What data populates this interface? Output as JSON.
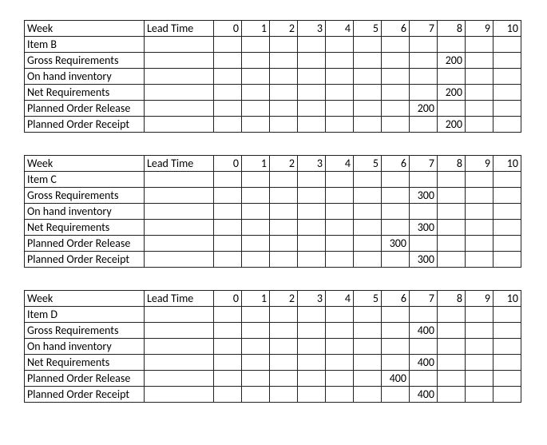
{
  "header": {
    "week_label": "Week",
    "lead_time_label": "Lead Time",
    "periods": [
      "0",
      "1",
      "2",
      "3",
      "4",
      "5",
      "6",
      "7",
      "8",
      "9",
      "10"
    ]
  },
  "row_labels": {
    "gross": "Gross Requirements",
    "onhand": "On hand inventory",
    "net": "Net Requirements",
    "release": "Planned Order Release",
    "receipt": "Planned Order Receipt"
  },
  "tables": [
    {
      "item_label": "Item B",
      "rows": {
        "gross": [
          "",
          "",
          "",
          "",
          "",
          "",
          "",
          "",
          "200",
          "",
          ""
        ],
        "onhand": [
          "",
          "",
          "",
          "",
          "",
          "",
          "",
          "",
          "",
          "",
          ""
        ],
        "net": [
          "",
          "",
          "",
          "",
          "",
          "",
          "",
          "",
          "200",
          "",
          ""
        ],
        "release": [
          "",
          "",
          "",
          "",
          "",
          "",
          "",
          "200",
          "",
          "",
          ""
        ],
        "receipt": [
          "",
          "",
          "",
          "",
          "",
          "",
          "",
          "",
          "200",
          "",
          ""
        ]
      }
    },
    {
      "item_label": "Item C",
      "rows": {
        "gross": [
          "",
          "",
          "",
          "",
          "",
          "",
          "",
          "300",
          "",
          "",
          ""
        ],
        "onhand": [
          "",
          "",
          "",
          "",
          "",
          "",
          "",
          "",
          "",
          "",
          ""
        ],
        "net": [
          "",
          "",
          "",
          "",
          "",
          "",
          "",
          "300",
          "",
          "",
          ""
        ],
        "release": [
          "",
          "",
          "",
          "",
          "",
          "",
          "300",
          "",
          "",
          "",
          ""
        ],
        "receipt": [
          "",
          "",
          "",
          "",
          "",
          "",
          "",
          "300",
          "",
          "",
          ""
        ]
      }
    },
    {
      "item_label": "Item D",
      "rows": {
        "gross": [
          "",
          "",
          "",
          "",
          "",
          "",
          "",
          "400",
          "",
          "",
          ""
        ],
        "onhand": [
          "",
          "",
          "",
          "",
          "",
          "",
          "",
          "",
          "",
          "",
          ""
        ],
        "net": [
          "",
          "",
          "",
          "",
          "",
          "",
          "",
          "400",
          "",
          "",
          ""
        ],
        "release": [
          "",
          "",
          "",
          "",
          "",
          "",
          "400",
          "",
          "",
          "",
          ""
        ],
        "receipt": [
          "",
          "",
          "",
          "",
          "",
          "",
          "",
          "400",
          "",
          "",
          ""
        ]
      }
    }
  ]
}
